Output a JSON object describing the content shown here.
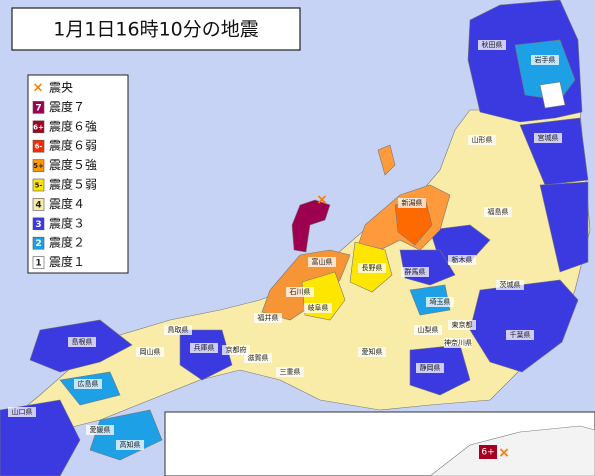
{
  "title": "1月1日16時10分の地震",
  "legend": [
    {
      "icon": "×",
      "label": "震央",
      "color": "#ff7a00"
    },
    {
      "icon": "7",
      "label": "震度７",
      "color": "#9e0050"
    },
    {
      "icon": "6+",
      "label": "震度６強",
      "color": "#a50021"
    },
    {
      "icon": "6-",
      "label": "震度６弱",
      "color": "#ff2800"
    },
    {
      "icon": "5+",
      "label": "震度５強",
      "color": "#ff9900"
    },
    {
      "icon": "5-",
      "label": "震度５弱",
      "color": "#ffe600"
    },
    {
      "icon": "4",
      "label": "震度４",
      "color": "#f8eca8"
    },
    {
      "icon": "3",
      "label": "震度３",
      "color": "#3a3ae0"
    },
    {
      "icon": "2",
      "label": "震度２",
      "color": "#1ea0e6"
    },
    {
      "icon": "1",
      "label": "震度１",
      "color": "#ffffff"
    }
  ],
  "prefectures": [
    "秋田県",
    "岩手県",
    "山形県",
    "宮城県",
    "新潟県",
    "福島県",
    "石川県",
    "富山県",
    "長野県",
    "群馬県",
    "栃木県",
    "茨城県",
    "福井県",
    "岐阜県",
    "埼玉県",
    "山梨県",
    "東京都",
    "千葉県",
    "神奈川県",
    "静岡県",
    "愛知県",
    "滋賀県",
    "京都府",
    "兵庫県",
    "岡山県",
    "鳥取県",
    "島根県",
    "広島県",
    "山口県",
    "愛媛県",
    "高知県",
    "三重県"
  ],
  "inset": {
    "icon": "6+",
    "marker": "×"
  }
}
